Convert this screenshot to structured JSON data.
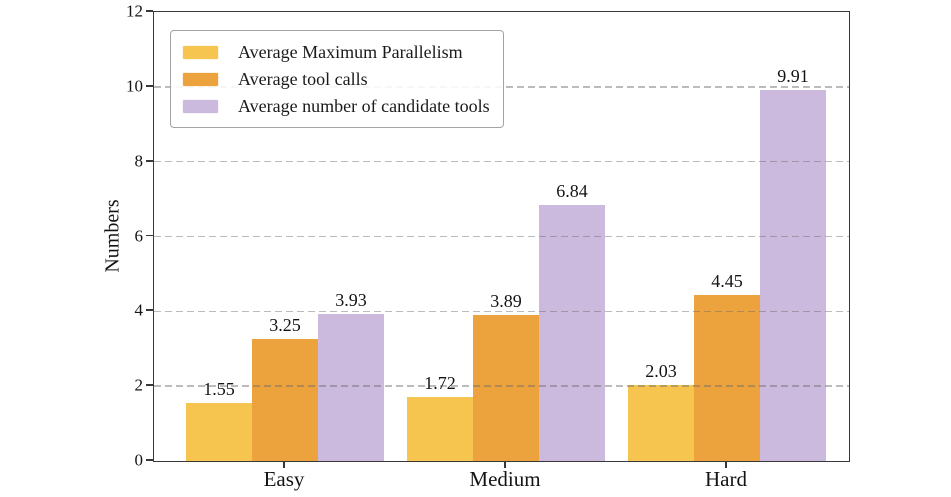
{
  "chart_data": {
    "type": "bar",
    "title": "",
    "xlabel": "",
    "ylabel": "Numbers",
    "ylim": [
      0,
      12
    ],
    "yticks": [
      0,
      2,
      4,
      6,
      8,
      10,
      12
    ],
    "grid": {
      "axis": "y",
      "style": "dashed",
      "drawn_above_bars": true
    },
    "legend_position": "upper left",
    "categories": [
      "Easy",
      "Medium",
      "Hard"
    ],
    "series": [
      {
        "name": "Average Maximum Parallelism",
        "color": "#F5C54F",
        "values": [
          1.55,
          1.72,
          2.03
        ]
      },
      {
        "name": "Average tool calls",
        "color": "#EDA33D",
        "values": [
          3.25,
          3.89,
          4.45
        ]
      },
      {
        "name": "Average number of candidate tools",
        "color": "#CBBADE",
        "values": [
          3.93,
          6.84,
          9.91
        ]
      }
    ],
    "bar_value_labels": [
      "1.55",
      "3.25",
      "3.93",
      "1.72",
      "3.89",
      "6.84",
      "2.03",
      "4.45",
      "9.91"
    ]
  },
  "colors": {
    "spine": "#383838",
    "grid": "#6f6f6f",
    "text": "#141414",
    "legend_border": "#a3a3a3",
    "background": "#ffffff"
  }
}
